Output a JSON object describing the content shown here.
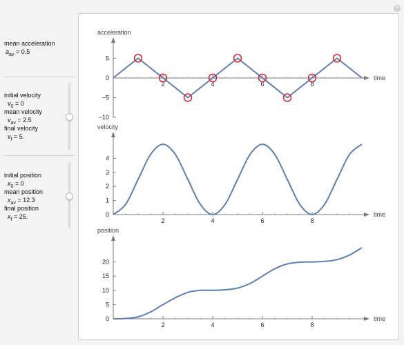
{
  "controls": {
    "mean_acceleration": {
      "label": "mean acceleration",
      "symbol": "a",
      "subscript": "av",
      "value_text": "=  0.5"
    },
    "velocity_group": {
      "initial_label": "initial velocity",
      "initial_symbol": "v",
      "initial_sub": "0",
      "initial_value": " = 0",
      "mean_label": "mean velocity",
      "mean_symbol": "v",
      "mean_sub": "av",
      "mean_value": " = 2.5",
      "final_label": "final velocity",
      "final_symbol": "v",
      "final_sub": "f",
      "final_value": " = 5.",
      "slider_value": 0.5
    },
    "position_group": {
      "initial_label": "initial position",
      "initial_symbol": "x",
      "initial_sub": "0",
      "initial_value": " = 0",
      "mean_label": "mean position",
      "mean_symbol": "x",
      "mean_sub": "av",
      "mean_value": " = 12.3",
      "final_label": "final position",
      "final_symbol": "x",
      "final_sub": "f",
      "final_value": " = 25.",
      "slider_value": 0.5
    }
  },
  "add_button_glyph": "+",
  "chart_data": [
    {
      "type": "line",
      "ylabel": "acceleration",
      "xlabel": "time",
      "xlim": [
        0,
        10
      ],
      "ylim": [
        -10,
        7
      ],
      "xticks": [
        2,
        4,
        6,
        8
      ],
      "yticks": [
        -10,
        -5,
        0,
        5
      ],
      "x": [
        0,
        1,
        2,
        3,
        4,
        5,
        6,
        7,
        8,
        9,
        10
      ],
      "y": [
        0,
        5,
        0,
        -5,
        0,
        5,
        0,
        -5,
        0,
        5,
        0
      ],
      "markers": {
        "x": [
          1,
          2,
          3,
          4,
          5,
          6,
          7,
          8,
          9
        ],
        "y": [
          5,
          0,
          -5,
          0,
          5,
          0,
          -5,
          0,
          5
        ]
      },
      "line_color": "#5b7fb5",
      "marker_color": "#e0141e"
    },
    {
      "type": "line",
      "ylabel": "velocity",
      "xlabel": "time",
      "xlim": [
        0,
        10
      ],
      "ylim": [
        0,
        5
      ],
      "xticks": [
        2,
        4,
        6,
        8
      ],
      "yticks": [
        0,
        1,
        2,
        3,
        4
      ],
      "x": [
        0,
        0.5,
        1,
        1.5,
        2,
        2.5,
        3,
        3.5,
        4,
        4.5,
        5,
        5.5,
        6,
        6.5,
        7,
        7.5,
        8,
        8.5,
        9,
        9.5,
        10
      ],
      "y": [
        0,
        0.73,
        2.5,
        4.27,
        5.0,
        4.27,
        2.5,
        0.73,
        0,
        0.73,
        2.5,
        4.27,
        5.0,
        4.27,
        2.5,
        0.73,
        0,
        0.73,
        2.5,
        4.27,
        5.0
      ],
      "line_color": "#5b7fb5"
    },
    {
      "type": "line",
      "ylabel": "position",
      "xlabel": "time",
      "xlim": [
        0,
        10
      ],
      "ylim": [
        0,
        25
      ],
      "xticks": [
        2,
        4,
        6,
        8
      ],
      "yticks": [
        0,
        5,
        10,
        15,
        20
      ],
      "x": [
        0,
        0.5,
        1,
        1.5,
        2,
        2.5,
        3,
        3.5,
        4,
        4.5,
        5,
        5.5,
        6,
        6.5,
        7,
        7.5,
        8,
        8.5,
        9,
        9.5,
        10
      ],
      "y": [
        0,
        0.1,
        0.7,
        2.4,
        5.0,
        7.4,
        9.3,
        10.0,
        10.0,
        10.2,
        10.8,
        12.4,
        15.0,
        17.6,
        19.3,
        19.9,
        20.0,
        20.2,
        20.8,
        22.4,
        25.0
      ],
      "line_color": "#5b7fb5"
    }
  ]
}
